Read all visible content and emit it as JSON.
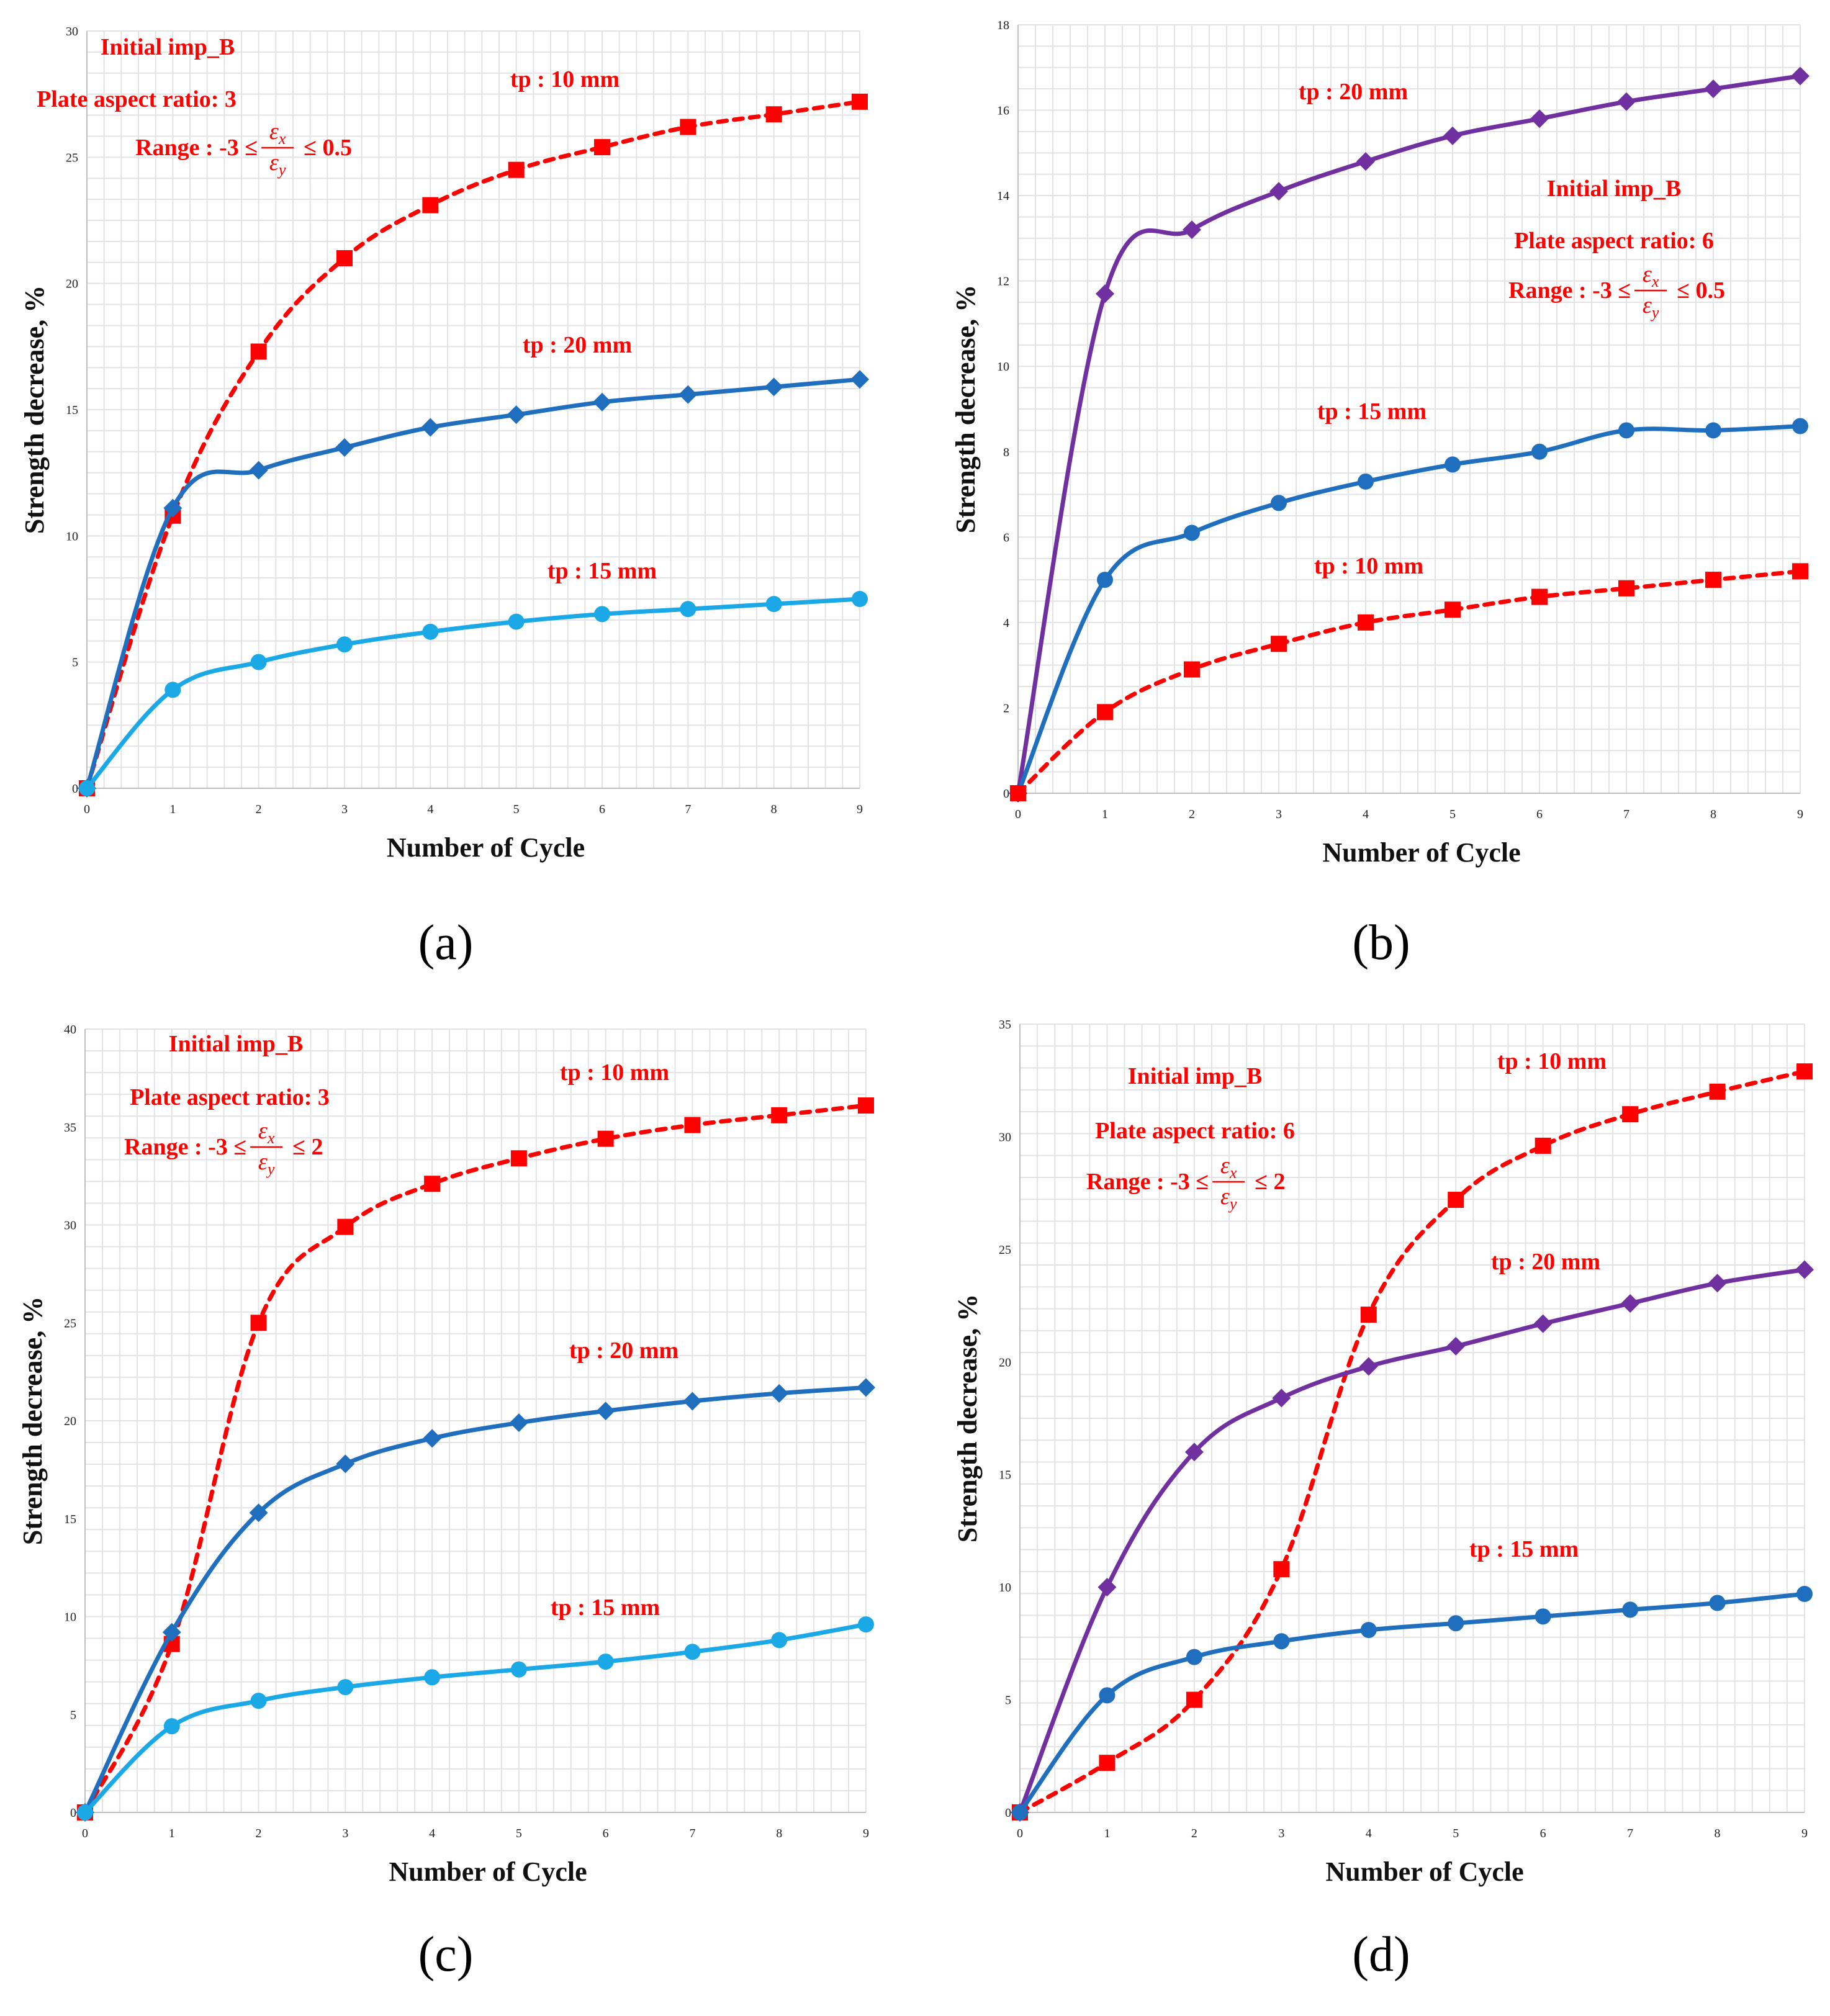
{
  "figure": {
    "colors": {
      "red": "#ff0000",
      "dark_blue": "#1f6fbe",
      "light_blue": "#1aa8e6",
      "purple": "#7030a0",
      "grid": "#e3e3e3"
    }
  },
  "chart_data": [
    {
      "id": "a",
      "type": "line",
      "panel_label": "(a)",
      "xlabel": "Number of Cycle",
      "ylabel": "Strength decrease, %",
      "x": [
        0,
        1,
        2,
        3,
        4,
        5,
        6,
        7,
        8,
        9
      ],
      "xlim": [
        0,
        9
      ],
      "ylim": [
        0,
        30
      ],
      "yticks": [
        0,
        5,
        10,
        15,
        20,
        25,
        30
      ],
      "grid": true,
      "annotation_lines": {
        "imp": "Initial imp_B",
        "aspect": "Plate aspect ratio: 3",
        "range_prefix": "Range : -3 ≤",
        "range_num": "ε",
        "range_num_sub": "x",
        "range_den": "ε",
        "range_den_sub": "y",
        "range_suffix": "≤ 0.5"
      },
      "series": [
        {
          "name": "tp : 10 mm",
          "marker": "square",
          "dashed": true,
          "color": "#ff0000",
          "values": [
            0,
            10.8,
            17.3,
            21.0,
            23.1,
            24.5,
            25.4,
            26.2,
            26.7,
            27.2
          ]
        },
        {
          "name": "tp : 20 mm",
          "marker": "diamond",
          "dashed": false,
          "color": "#1f6fbe",
          "values": [
            0,
            11.1,
            12.6,
            13.5,
            14.3,
            14.8,
            15.3,
            15.6,
            15.9,
            16.2
          ]
        },
        {
          "name": "tp : 15 mm",
          "marker": "circle",
          "dashed": false,
          "color": "#1aa8e6",
          "values": [
            0,
            3.9,
            5.0,
            5.7,
            6.2,
            6.6,
            6.9,
            7.1,
            7.3,
            7.5
          ]
        }
      ]
    },
    {
      "id": "b",
      "type": "line",
      "panel_label": "(b)",
      "xlabel": "Number of Cycle",
      "ylabel": "Strength decrease, %",
      "x": [
        0,
        1,
        2,
        3,
        4,
        5,
        6,
        7,
        8,
        9
      ],
      "xlim": [
        0,
        9
      ],
      "ylim": [
        0,
        18
      ],
      "yticks": [
        0,
        2,
        4,
        6,
        8,
        10,
        12,
        14,
        16,
        18
      ],
      "grid": true,
      "annotation_lines": {
        "imp": "Initial imp_B",
        "aspect": "Plate aspect ratio: 6",
        "range_prefix": "Range : -3 ≤",
        "range_num": "ε",
        "range_num_sub": "x",
        "range_den": "ε",
        "range_den_sub": "y",
        "range_suffix": "≤ 0.5"
      },
      "series": [
        {
          "name": "tp : 20 mm",
          "marker": "diamond",
          "dashed": false,
          "color": "#7030a0",
          "values": [
            0,
            11.7,
            13.2,
            14.1,
            14.8,
            15.4,
            15.8,
            16.2,
            16.5,
            16.8
          ]
        },
        {
          "name": "tp : 15 mm",
          "marker": "circle",
          "dashed": false,
          "color": "#1f6fbe",
          "values": [
            0,
            5.0,
            6.1,
            6.8,
            7.3,
            7.7,
            8.0,
            8.5,
            8.5,
            8.6
          ]
        },
        {
          "name": "tp : 10 mm",
          "marker": "square",
          "dashed": true,
          "color": "#ff0000",
          "values": [
            0,
            1.9,
            2.9,
            3.5,
            4.0,
            4.3,
            4.6,
            4.8,
            5.0,
            5.2
          ]
        }
      ]
    },
    {
      "id": "c",
      "type": "line",
      "panel_label": "(c)",
      "xlabel": "Number of Cycle",
      "ylabel": "Strength decrease, %",
      "x": [
        0,
        1,
        2,
        3,
        4,
        5,
        6,
        7,
        8,
        9
      ],
      "xlim": [
        0,
        9
      ],
      "ylim": [
        0,
        40
      ],
      "yticks": [
        0,
        5,
        10,
        15,
        20,
        25,
        30,
        35,
        40
      ],
      "grid": true,
      "annotation_lines": {
        "imp": "Initial imp_B",
        "aspect": "Plate aspect ratio: 3",
        "range_prefix": "Range : -3 ≤",
        "range_num": "ε",
        "range_num_sub": "x",
        "range_den": "ε",
        "range_den_sub": "y",
        "range_suffix": "≤ 2"
      },
      "series": [
        {
          "name": "tp : 10 mm",
          "marker": "square",
          "dashed": true,
          "color": "#ff0000",
          "values": [
            0,
            8.6,
            25.0,
            29.9,
            32.1,
            33.4,
            34.4,
            35.1,
            35.6,
            36.1
          ]
        },
        {
          "name": "tp : 20 mm",
          "marker": "diamond",
          "dashed": false,
          "color": "#1f6fbe",
          "values": [
            0,
            9.2,
            15.3,
            17.8,
            19.1,
            19.9,
            20.5,
            21.0,
            21.4,
            21.7
          ]
        },
        {
          "name": "tp : 15 mm",
          "marker": "circle",
          "dashed": false,
          "color": "#1aa8e6",
          "values": [
            0,
            4.4,
            5.7,
            6.4,
            6.9,
            7.3,
            7.7,
            8.2,
            8.8,
            9.6
          ]
        }
      ]
    },
    {
      "id": "d",
      "type": "line",
      "panel_label": "(d)",
      "xlabel": "Number of Cycle",
      "ylabel": "Strength decrease, %",
      "x": [
        0,
        1,
        2,
        3,
        4,
        5,
        6,
        7,
        8,
        9
      ],
      "xlim": [
        0,
        9
      ],
      "ylim": [
        0,
        35
      ],
      "yticks": [
        0,
        5,
        10,
        15,
        20,
        25,
        30,
        35
      ],
      "grid": true,
      "annotation_lines": {
        "imp": "Initial imp_B",
        "aspect": "Plate aspect ratio: 6",
        "range_prefix": "Range : -3 ≤",
        "range_num": "ε",
        "range_num_sub": "x",
        "range_den": "ε",
        "range_den_sub": "y",
        "range_suffix": "≤ 2"
      },
      "series": [
        {
          "name": "tp : 10 mm",
          "marker": "square",
          "dashed": true,
          "color": "#ff0000",
          "values": [
            0,
            2.2,
            5.0,
            10.8,
            22.1,
            27.2,
            29.6,
            31.0,
            32.0,
            32.9
          ]
        },
        {
          "name": "tp : 20 mm",
          "marker": "diamond",
          "dashed": false,
          "color": "#7030a0",
          "values": [
            0,
            10.0,
            16.0,
            18.4,
            19.8,
            20.7,
            21.7,
            22.6,
            23.5,
            24.1
          ]
        },
        {
          "name": "tp : 15 mm",
          "marker": "circle",
          "dashed": false,
          "color": "#1f6fbe",
          "values": [
            0,
            5.2,
            6.9,
            7.6,
            8.1,
            8.4,
            8.7,
            9.0,
            9.3,
            9.7
          ]
        }
      ]
    }
  ]
}
